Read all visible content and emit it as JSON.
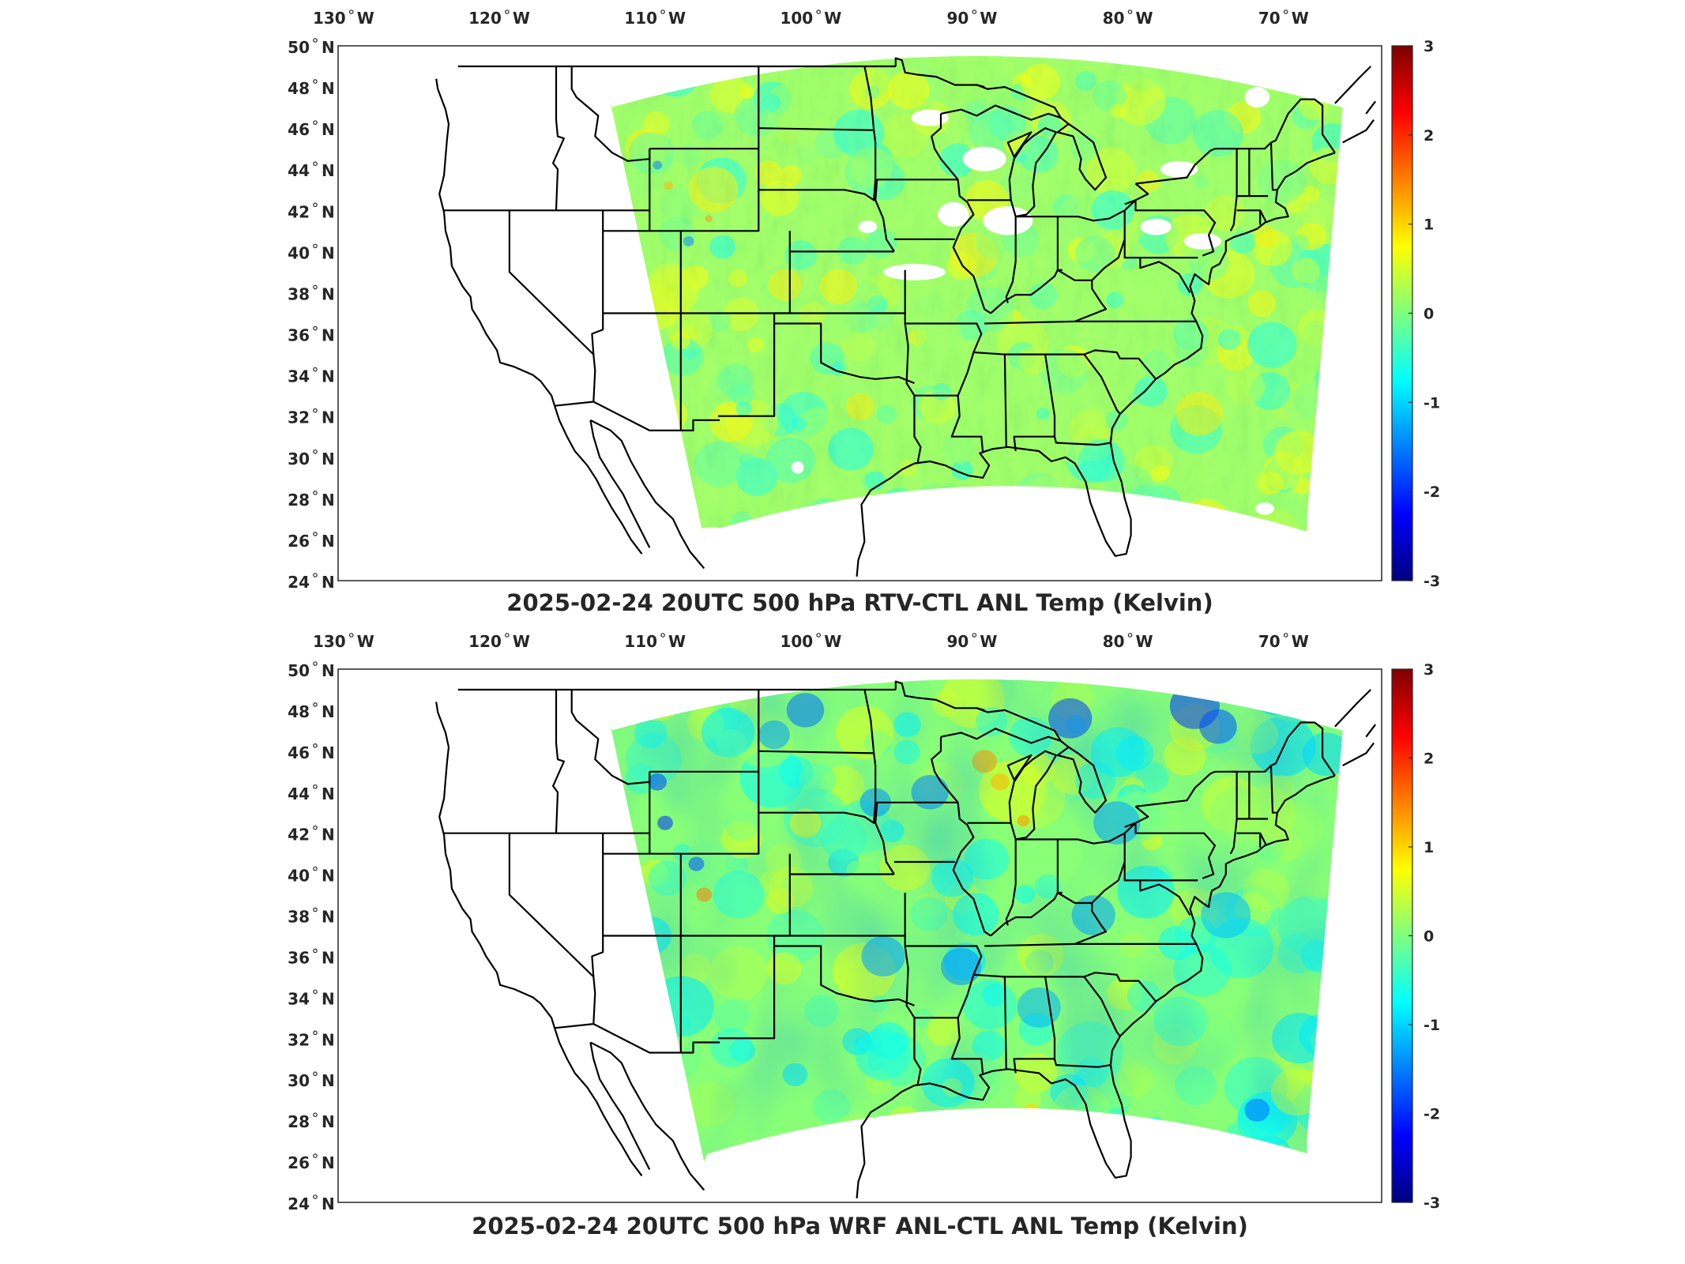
{
  "panels": [
    {
      "title": "2025-02-24 20UTC 500 hPa RTV-CTL ANL Temp (Kelvin)",
      "field": "RTV-CTL",
      "character": "mostly near zero, slight warm speckle, gaps (white) over Great Lakes and Midwest"
    },
    {
      "title": "2025-02-24 20UTC 500 hPa WRF ANL-CTL ANL Temp (Kelvin)",
      "field": "WRF-CTL",
      "character": "smoother field with cool patches over Rockies, Great Lakes and northern Plains"
    }
  ],
  "map": {
    "lon_range": [
      -131,
      -64
    ],
    "lat_range": [
      24,
      50
    ],
    "lon_ticks": [
      {
        "value": -130,
        "label": "130",
        "hemi": "W"
      },
      {
        "value": -120,
        "label": "120",
        "hemi": "W"
      },
      {
        "value": -110,
        "label": "110",
        "hemi": "W"
      },
      {
        "value": -100,
        "label": "100",
        "hemi": "W"
      },
      {
        "value": -90,
        "label": "90",
        "hemi": "W"
      },
      {
        "value": -80,
        "label": "80",
        "hemi": "W"
      },
      {
        "value": -70,
        "label": "70",
        "hemi": "W"
      }
    ],
    "lat_ticks": [
      {
        "value": 50,
        "label": "50",
        "hemi": "N"
      },
      {
        "value": 48,
        "label": "48",
        "hemi": "N"
      },
      {
        "value": 46,
        "label": "46",
        "hemi": "N"
      },
      {
        "value": 44,
        "label": "44",
        "hemi": "N"
      },
      {
        "value": 42,
        "label": "42",
        "hemi": "N"
      },
      {
        "value": 40,
        "label": "40",
        "hemi": "N"
      },
      {
        "value": 38,
        "label": "38",
        "hemi": "N"
      },
      {
        "value": 36,
        "label": "36",
        "hemi": "N"
      },
      {
        "value": 34,
        "label": "34",
        "hemi": "N"
      },
      {
        "value": 32,
        "label": "32",
        "hemi": "N"
      },
      {
        "value": 30,
        "label": "30",
        "hemi": "N"
      },
      {
        "value": 28,
        "label": "28",
        "hemi": "N"
      },
      {
        "value": 26,
        "label": "26",
        "hemi": "N"
      },
      {
        "value": 24,
        "label": "24",
        "hemi": "N"
      }
    ]
  },
  "colorbar": {
    "min": -3,
    "max": 3,
    "ticks": [
      "3",
      "2",
      "1",
      "0",
      "-1",
      "-2",
      "-3"
    ],
    "colormap": "jet",
    "colors": [
      "#00007f",
      "#0000ff",
      "#007fff",
      "#00ffff",
      "#7fff7f",
      "#ffff00",
      "#ff7f00",
      "#ff0000",
      "#7f0000"
    ]
  }
}
